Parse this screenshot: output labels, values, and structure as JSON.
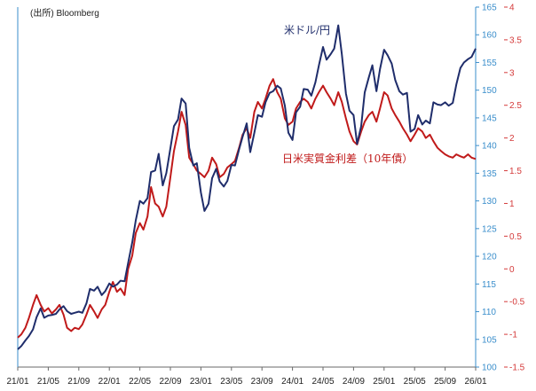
{
  "source_note": "(出所) Bloomberg",
  "chart_data": {
    "type": "line",
    "title": "",
    "x_tick_labels": [
      "21/01",
      "21/05",
      "21/09",
      "22/01",
      "22/05",
      "22/09",
      "23/01",
      "23/05",
      "23/09",
      "24/01",
      "24/05",
      "24/09",
      "25/01",
      "25/05",
      "25/09",
      "26/01"
    ],
    "x_range": [
      "2021-01",
      "2026-01"
    ],
    "left_axis": {
      "min": 100,
      "max": 165,
      "ticks": [
        100,
        105,
        110,
        115,
        120,
        125,
        130,
        135,
        140,
        145,
        150,
        155,
        160,
        165
      ],
      "color": "#3a8ecb"
    },
    "right_axis": {
      "min": -1.5,
      "max": 4,
      "ticks": [
        "-1.5",
        "-1",
        "-0.5",
        "0",
        "0.5",
        "1",
        "1.5",
        "2",
        "2.5",
        "3",
        "3.5",
        "4"
      ],
      "color": "#d43a3a"
    },
    "grid": false,
    "series": [
      {
        "name": "米ドル/円",
        "axis": "left",
        "color": "#1f2d6b",
        "points": [
          [
            "2021-01-01",
            103.2
          ],
          [
            "2021-01-15",
            103.8
          ],
          [
            "2021-02-01",
            104.8
          ],
          [
            "2021-02-15",
            105.6
          ],
          [
            "2021-03-01",
            106.8
          ],
          [
            "2021-03-15",
            109.0
          ],
          [
            "2021-04-01",
            110.6
          ],
          [
            "2021-04-15",
            108.9
          ],
          [
            "2021-05-01",
            109.3
          ],
          [
            "2021-05-15",
            109.4
          ],
          [
            "2021-06-01",
            109.6
          ],
          [
            "2021-06-15",
            110.4
          ],
          [
            "2021-07-01",
            111.0
          ],
          [
            "2021-07-15",
            110.1
          ],
          [
            "2021-08-01",
            109.6
          ],
          [
            "2021-08-15",
            109.8
          ],
          [
            "2021-09-01",
            110.0
          ],
          [
            "2021-09-15",
            109.8
          ],
          [
            "2021-10-01",
            111.5
          ],
          [
            "2021-10-15",
            114.1
          ],
          [
            "2021-11-01",
            113.8
          ],
          [
            "2021-11-15",
            114.5
          ],
          [
            "2021-12-01",
            113.0
          ],
          [
            "2021-12-15",
            113.7
          ],
          [
            "2022-01-01",
            115.1
          ],
          [
            "2022-01-15",
            114.5
          ],
          [
            "2022-02-01",
            114.9
          ],
          [
            "2022-02-15",
            115.6
          ],
          [
            "2022-03-01",
            115.5
          ],
          [
            "2022-03-15",
            118.8
          ],
          [
            "2022-04-01",
            122.5
          ],
          [
            "2022-04-15",
            126.5
          ],
          [
            "2022-05-01",
            130.0
          ],
          [
            "2022-05-15",
            129.5
          ],
          [
            "2022-06-01",
            130.5
          ],
          [
            "2022-06-15",
            135.2
          ],
          [
            "2022-07-01",
            135.5
          ],
          [
            "2022-07-15",
            138.5
          ],
          [
            "2022-08-01",
            132.8
          ],
          [
            "2022-08-15",
            135.0
          ],
          [
            "2022-09-01",
            139.5
          ],
          [
            "2022-09-15",
            143.5
          ],
          [
            "2022-10-01",
            144.7
          ],
          [
            "2022-10-15",
            148.5
          ],
          [
            "2022-11-01",
            147.6
          ],
          [
            "2022-11-15",
            139.6
          ],
          [
            "2022-12-01",
            136.4
          ],
          [
            "2022-12-15",
            136.8
          ],
          [
            "2023-01-01",
            131.5
          ],
          [
            "2023-01-15",
            128.2
          ],
          [
            "2023-02-01",
            129.5
          ],
          [
            "2023-02-15",
            134.1
          ],
          [
            "2023-03-01",
            135.8
          ],
          [
            "2023-03-15",
            133.5
          ],
          [
            "2023-04-01",
            132.6
          ],
          [
            "2023-04-15",
            133.6
          ],
          [
            "2023-05-01",
            136.5
          ],
          [
            "2023-05-15",
            136.4
          ],
          [
            "2023-06-01",
            139.3
          ],
          [
            "2023-06-15",
            141.6
          ],
          [
            "2023-07-01",
            144.0
          ],
          [
            "2023-07-15",
            138.8
          ],
          [
            "2023-08-01",
            142.3
          ],
          [
            "2023-08-15",
            145.5
          ],
          [
            "2023-09-01",
            145.2
          ],
          [
            "2023-09-15",
            147.8
          ],
          [
            "2023-10-01",
            149.5
          ],
          [
            "2023-10-15",
            149.8
          ],
          [
            "2023-11-01",
            150.8
          ],
          [
            "2023-11-15",
            150.3
          ],
          [
            "2023-12-01",
            147.2
          ],
          [
            "2023-12-15",
            142.3
          ],
          [
            "2024-01-01",
            141.0
          ],
          [
            "2024-01-15",
            146.0
          ],
          [
            "2024-02-01",
            147.0
          ],
          [
            "2024-02-15",
            150.2
          ],
          [
            "2024-03-01",
            150.1
          ],
          [
            "2024-03-15",
            149.0
          ],
          [
            "2024-04-01",
            151.4
          ],
          [
            "2024-04-15",
            154.5
          ],
          [
            "2024-05-01",
            157.8
          ],
          [
            "2024-05-15",
            155.5
          ],
          [
            "2024-06-01",
            156.5
          ],
          [
            "2024-06-15",
            157.5
          ],
          [
            "2024-07-01",
            161.7
          ],
          [
            "2024-07-15",
            156.5
          ],
          [
            "2024-08-01",
            149.4
          ],
          [
            "2024-08-15",
            146.3
          ],
          [
            "2024-09-01",
            145.5
          ],
          [
            "2024-09-15",
            140.3
          ],
          [
            "2024-10-01",
            143.5
          ],
          [
            "2024-10-15",
            149.6
          ],
          [
            "2024-11-01",
            152.3
          ],
          [
            "2024-11-15",
            154.5
          ],
          [
            "2024-12-01",
            149.8
          ],
          [
            "2024-12-15",
            153.8
          ],
          [
            "2025-01-01",
            157.3
          ],
          [
            "2025-01-15",
            156.3
          ],
          [
            "2025-02-01",
            154.8
          ],
          [
            "2025-02-15",
            151.8
          ],
          [
            "2025-03-01",
            149.8
          ],
          [
            "2025-03-15",
            149.2
          ],
          [
            "2025-04-01",
            149.5
          ],
          [
            "2025-04-15",
            142.5
          ],
          [
            "2025-05-01",
            143.0
          ],
          [
            "2025-05-15",
            145.5
          ],
          [
            "2025-06-01",
            143.8
          ],
          [
            "2025-06-15",
            144.5
          ],
          [
            "2025-07-01",
            144.0
          ],
          [
            "2025-07-15",
            147.8
          ],
          [
            "2025-08-01",
            147.4
          ],
          [
            "2025-08-15",
            147.3
          ],
          [
            "2025-09-01",
            147.8
          ],
          [
            "2025-09-15",
            147.2
          ],
          [
            "2025-10-01",
            147.7
          ],
          [
            "2025-10-15",
            151.0
          ],
          [
            "2025-11-01",
            154.0
          ],
          [
            "2025-11-15",
            155.0
          ],
          [
            "2025-12-01",
            155.6
          ],
          [
            "2025-12-15",
            156.0
          ],
          [
            "2026-01-01",
            157.5
          ]
        ]
      },
      {
        "name": "日米実質金利差（10年債）",
        "axis": "right",
        "color": "#c01a1a",
        "points": [
          [
            "2021-01-01",
            -1.05
          ],
          [
            "2021-01-15",
            -1.0
          ],
          [
            "2021-02-01",
            -0.9
          ],
          [
            "2021-02-15",
            -0.75
          ],
          [
            "2021-03-01",
            -0.55
          ],
          [
            "2021-03-15",
            -0.4
          ],
          [
            "2021-04-01",
            -0.55
          ],
          [
            "2021-04-15",
            -0.65
          ],
          [
            "2021-05-01",
            -0.6
          ],
          [
            "2021-05-15",
            -0.68
          ],
          [
            "2021-06-01",
            -0.62
          ],
          [
            "2021-06-15",
            -0.55
          ],
          [
            "2021-07-01",
            -0.7
          ],
          [
            "2021-07-15",
            -0.9
          ],
          [
            "2021-08-01",
            -0.95
          ],
          [
            "2021-08-15",
            -0.9
          ],
          [
            "2021-09-01",
            -0.92
          ],
          [
            "2021-09-15",
            -0.85
          ],
          [
            "2021-10-01",
            -0.7
          ],
          [
            "2021-10-15",
            -0.55
          ],
          [
            "2021-11-01",
            -0.65
          ],
          [
            "2021-11-15",
            -0.75
          ],
          [
            "2021-12-01",
            -0.62
          ],
          [
            "2021-12-15",
            -0.55
          ],
          [
            "2022-01-01",
            -0.35
          ],
          [
            "2022-01-15",
            -0.2
          ],
          [
            "2022-02-01",
            -0.35
          ],
          [
            "2022-02-15",
            -0.3
          ],
          [
            "2022-03-01",
            -0.4
          ],
          [
            "2022-03-15",
            0.0
          ],
          [
            "2022-04-01",
            0.2
          ],
          [
            "2022-04-15",
            0.55
          ],
          [
            "2022-05-01",
            0.7
          ],
          [
            "2022-05-15",
            0.6
          ],
          [
            "2022-06-01",
            0.8
          ],
          [
            "2022-06-15",
            1.25
          ],
          [
            "2022-07-01",
            1.0
          ],
          [
            "2022-07-15",
            0.95
          ],
          [
            "2022-08-01",
            0.8
          ],
          [
            "2022-08-15",
            0.95
          ],
          [
            "2022-09-01",
            1.4
          ],
          [
            "2022-09-15",
            1.8
          ],
          [
            "2022-10-01",
            2.1
          ],
          [
            "2022-10-15",
            2.4
          ],
          [
            "2022-11-01",
            2.2
          ],
          [
            "2022-11-15",
            1.7
          ],
          [
            "2022-12-01",
            1.6
          ],
          [
            "2022-12-15",
            1.5
          ],
          [
            "2023-01-01",
            1.45
          ],
          [
            "2023-01-15",
            1.4
          ],
          [
            "2023-02-01",
            1.5
          ],
          [
            "2023-02-15",
            1.7
          ],
          [
            "2023-03-01",
            1.6
          ],
          [
            "2023-03-15",
            1.4
          ],
          [
            "2023-04-01",
            1.45
          ],
          [
            "2023-04-15",
            1.55
          ],
          [
            "2023-05-01",
            1.6
          ],
          [
            "2023-05-15",
            1.65
          ],
          [
            "2023-06-01",
            1.85
          ],
          [
            "2023-06-15",
            2.05
          ],
          [
            "2023-07-01",
            2.15
          ],
          [
            "2023-07-15",
            2.0
          ],
          [
            "2023-08-01",
            2.4
          ],
          [
            "2023-08-15",
            2.55
          ],
          [
            "2023-09-01",
            2.45
          ],
          [
            "2023-09-15",
            2.6
          ],
          [
            "2023-10-01",
            2.8
          ],
          [
            "2023-10-15",
            2.9
          ],
          [
            "2023-11-01",
            2.7
          ],
          [
            "2023-11-15",
            2.6
          ],
          [
            "2023-12-01",
            2.3
          ],
          [
            "2023-12-15",
            2.2
          ],
          [
            "2024-01-01",
            2.25
          ],
          [
            "2024-01-15",
            2.45
          ],
          [
            "2024-02-01",
            2.55
          ],
          [
            "2024-02-15",
            2.6
          ],
          [
            "2024-03-01",
            2.55
          ],
          [
            "2024-03-15",
            2.45
          ],
          [
            "2024-04-01",
            2.6
          ],
          [
            "2024-04-15",
            2.7
          ],
          [
            "2024-05-01",
            2.8
          ],
          [
            "2024-05-15",
            2.7
          ],
          [
            "2024-06-01",
            2.6
          ],
          [
            "2024-06-15",
            2.5
          ],
          [
            "2024-07-01",
            2.7
          ],
          [
            "2024-07-15",
            2.55
          ],
          [
            "2024-08-01",
            2.3
          ],
          [
            "2024-08-15",
            2.1
          ],
          [
            "2024-09-01",
            1.95
          ],
          [
            "2024-09-15",
            1.9
          ],
          [
            "2024-10-01",
            2.1
          ],
          [
            "2024-10-15",
            2.25
          ],
          [
            "2024-11-01",
            2.35
          ],
          [
            "2024-11-15",
            2.4
          ],
          [
            "2024-12-01",
            2.25
          ],
          [
            "2024-12-15",
            2.45
          ],
          [
            "2025-01-01",
            2.7
          ],
          [
            "2025-01-15",
            2.65
          ],
          [
            "2025-02-01",
            2.45
          ],
          [
            "2025-02-15",
            2.35
          ],
          [
            "2025-03-01",
            2.25
          ],
          [
            "2025-03-15",
            2.15
          ],
          [
            "2025-04-01",
            2.05
          ],
          [
            "2025-04-15",
            1.95
          ],
          [
            "2025-05-01",
            2.05
          ],
          [
            "2025-05-15",
            2.15
          ],
          [
            "2025-06-01",
            2.1
          ],
          [
            "2025-06-15",
            2.0
          ],
          [
            "2025-07-01",
            2.05
          ],
          [
            "2025-07-15",
            1.95
          ],
          [
            "2025-08-01",
            1.85
          ],
          [
            "2025-08-15",
            1.8
          ],
          [
            "2025-09-01",
            1.75
          ],
          [
            "2025-09-15",
            1.72
          ],
          [
            "2025-10-01",
            1.7
          ],
          [
            "2025-10-15",
            1.75
          ],
          [
            "2025-11-01",
            1.72
          ],
          [
            "2025-11-15",
            1.7
          ],
          [
            "2025-12-01",
            1.75
          ],
          [
            "2025-12-15",
            1.7
          ],
          [
            "2026-01-01",
            1.68
          ]
        ]
      }
    ]
  }
}
